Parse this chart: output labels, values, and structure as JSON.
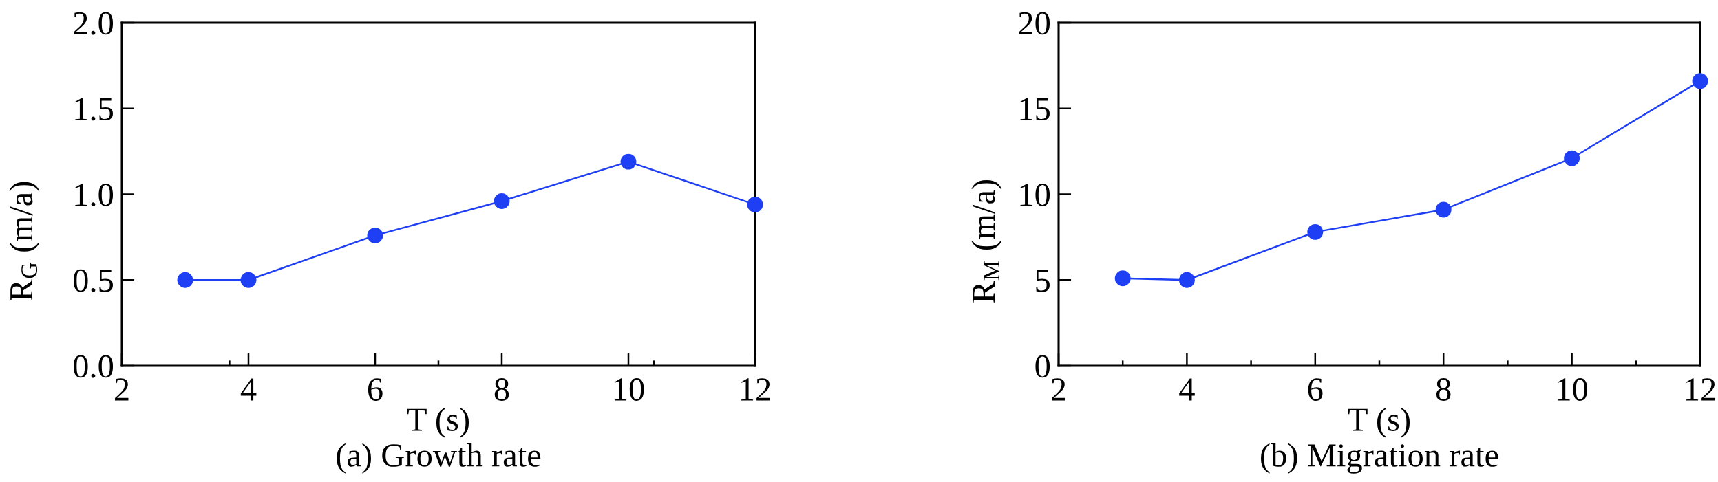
{
  "chart_data": [
    {
      "type": "line",
      "title": "(a) Growth rate",
      "xlabel": "T (s)",
      "ylabel": "R$_{G}$ (m/a)",
      "x": [
        3,
        4,
        6,
        8,
        10,
        12
      ],
      "series": [
        {
          "color": "#1f3ff5",
          "values": [
            0.5,
            0.5,
            0.76,
            0.96,
            1.19,
            0.94
          ]
        }
      ],
      "xlim": [
        2,
        12
      ],
      "ylim": [
        0.0,
        2.0
      ],
      "xticks": [
        2,
        {
          "value": 3.7,
          "label": null
        },
        4,
        6,
        {
          "value": 7,
          "label": null
        },
        8,
        10,
        {
          "value": 10.4,
          "label": null
        },
        12
      ],
      "yticks": [
        {
          "value": 0,
          "label": "0.0"
        },
        0.5,
        {
          "value": 1,
          "label": "1.0"
        },
        1.5,
        {
          "value": 2,
          "label": "2.0"
        }
      ],
      "marker": "circle",
      "line_style": "solid",
      "grid": false
    },
    {
      "type": "line",
      "title": "(b) Migration rate",
      "xlabel": "T (s)",
      "ylabel": "R$_{M}$ (m/a)",
      "x": [
        3,
        4,
        6,
        8,
        10,
        12
      ],
      "series": [
        {
          "color": "#1f3ff5",
          "values": [
            5.1,
            5.0,
            7.8,
            9.1,
            12.1,
            16.6
          ]
        }
      ],
      "xlim": [
        2,
        12
      ],
      "ylim": [
        0,
        20
      ],
      "xticks": [
        2,
        {
          "value": 3,
          "label": null
        },
        4,
        {
          "value": 5,
          "label": null
        },
        6,
        {
          "value": 7,
          "label": null
        },
        8,
        {
          "value": 9,
          "label": null
        },
        10,
        {
          "value": 11,
          "label": null
        },
        12
      ],
      "yticks": [
        0,
        5,
        10,
        15,
        20
      ],
      "marker": "circle",
      "line_style": "solid",
      "grid": false
    }
  ]
}
